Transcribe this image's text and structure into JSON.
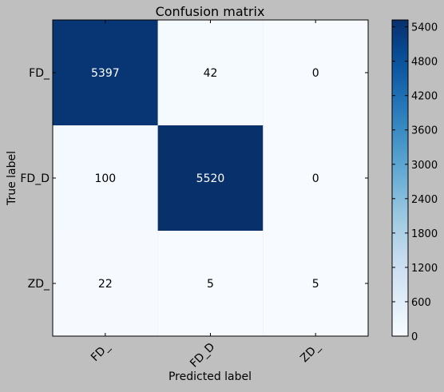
{
  "chart_data": {
    "type": "heatmap",
    "title": "Confusion matrix",
    "xlabel": "Predicted label",
    "ylabel": "True label",
    "x_categories": [
      "FD_",
      "FD_D",
      "ZD_"
    ],
    "y_categories": [
      "FD_",
      "FD_D",
      "ZD_"
    ],
    "matrix": [
      [
        5397,
        42,
        0
      ],
      [
        100,
        5520,
        0
      ],
      [
        22,
        5,
        5
      ]
    ],
    "colormap": "Blues",
    "color_range": [
      0,
      5520
    ],
    "colorbar_ticks": [
      "0",
      "600",
      "1200",
      "1800",
      "2400",
      "3000",
      "3600",
      "4200",
      "4800",
      "5400"
    ],
    "colorbar_tick_values": [
      0,
      600,
      1200,
      1800,
      2400,
      3000,
      3600,
      4200,
      4800,
      5400
    ]
  },
  "colors": {
    "background": "#bfbfbf",
    "cmap_low": "#f7fbff",
    "cmap_high": "#08306b",
    "text_on_dark": "#ffffff",
    "text_on_light": "#000000"
  }
}
